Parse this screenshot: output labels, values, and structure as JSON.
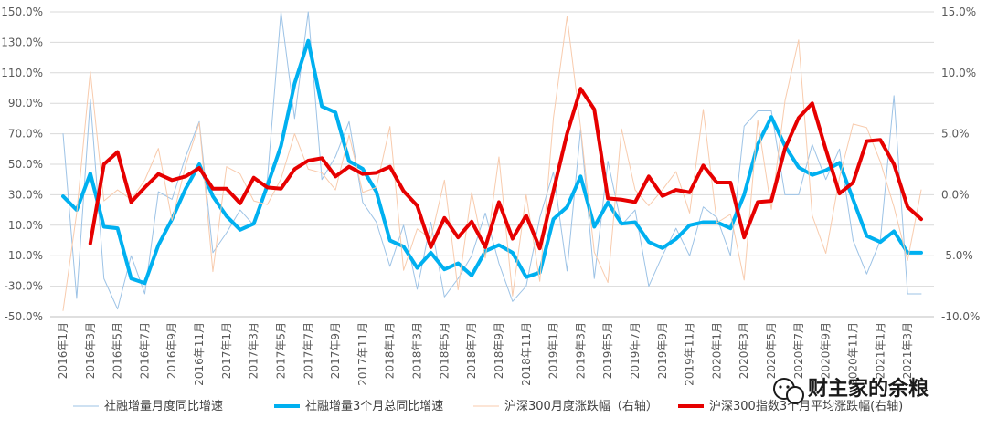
{
  "chart_data": {
    "type": "line",
    "months": [
      "2016年1月",
      "2016年2月",
      "2016年3月",
      "2016年4月",
      "2016年5月",
      "2016年6月",
      "2016年7月",
      "2016年8月",
      "2016年9月",
      "2016年10月",
      "2016年11月",
      "2016年12月",
      "2017年1月",
      "2017年2月",
      "2017年3月",
      "2017年4月",
      "2017年5月",
      "2017年6月",
      "2017年7月",
      "2017年8月",
      "2017年9月",
      "2017年10月",
      "2017年11月",
      "2017年12月",
      "2018年1月",
      "2018年2月",
      "2018年3月",
      "2018年4月",
      "2018年5月",
      "2018年6月",
      "2018年7月",
      "2018年8月",
      "2018年9月",
      "2018年10月",
      "2018年11月",
      "2018年12月",
      "2019年1月",
      "2019年2月",
      "2019年3月",
      "2019年4月",
      "2019年5月",
      "2019年6月",
      "2019年7月",
      "2019年8月",
      "2019年9月",
      "2019年10月",
      "2019年11月",
      "2019年12月",
      "2020年1月",
      "2020年2月",
      "2020年3月",
      "2020年4月",
      "2020年5月",
      "2020年6月",
      "2020年7月",
      "2020年8月",
      "2020年9月",
      "2020年10月",
      "2020年11月",
      "2020年12月",
      "2021年1月",
      "2021年2月",
      "2021年3月",
      "2021年4月"
    ],
    "x_tick_labels": [
      "2016年1月",
      "2016年3月",
      "2016年5月",
      "2016年7月",
      "2016年9月",
      "2016年11月",
      "2017年1月",
      "2017年3月",
      "2017年5月",
      "2017年7月",
      "2017年9月",
      "2017年11月",
      "2018年1月",
      "2018年3月",
      "2018年5月",
      "2018年7月",
      "2018年9月",
      "2018年11月",
      "2019年1月",
      "2019年3月",
      "2019年5月",
      "2019年7月",
      "2019年9月",
      "2019年11月",
      "2020年1月",
      "2020年3月",
      "2020年5月",
      "2020年7月",
      "2020年9月",
      "2020年11月",
      "2021年1月",
      "2021年3月"
    ],
    "y_left": {
      "min": -50,
      "max": 150,
      "step": 20,
      "unit": "%"
    },
    "y_right": {
      "min": -10,
      "max": 15,
      "step": 5,
      "unit": "%"
    },
    "series": [
      {
        "name": "社融增量月度同比增速",
        "axis": "left",
        "color": "#9dc3e6",
        "width": 1,
        "values": [
          70,
          -38,
          93,
          -25,
          -45,
          -10,
          -35,
          32,
          27,
          55,
          78,
          -8,
          5,
          20,
          10,
          40,
          150,
          80,
          150,
          40,
          55,
          78,
          25,
          12,
          -17,
          10,
          -32,
          12,
          -37,
          -25,
          -10,
          18,
          -15,
          -40,
          -30,
          15,
          45,
          -20,
          73,
          -25,
          52,
          10,
          20,
          -30,
          -10,
          8,
          -10,
          22,
          15,
          -10,
          75,
          85,
          85,
          30,
          30,
          63,
          40,
          60,
          0,
          -22,
          0,
          95,
          -35,
          -35
        ]
      },
      {
        "name": "社融增量3个月总同比增速",
        "axis": "left",
        "color": "#00b0f0",
        "width": 4,
        "values": [
          29,
          20,
          44,
          9,
          8,
          -25,
          -28,
          -3,
          14,
          34,
          50,
          29,
          16,
          7,
          11,
          36,
          62,
          103,
          131,
          88,
          84,
          52,
          47,
          32,
          0,
          -4,
          -18,
          -8,
          -19,
          -15,
          -23,
          -7,
          -3,
          -8,
          -24,
          -21,
          14,
          22,
          42,
          9,
          25,
          11,
          12,
          -1,
          -5,
          1,
          10,
          12,
          12,
          8,
          30,
          63,
          81,
          62,
          48,
          43,
          46,
          51,
          27,
          3,
          -1,
          6,
          -8,
          -8
        ]
      },
      {
        "name": "沪深300月度涨跌幅（右轴）",
        "axis": "right",
        "color": "#f8cbad",
        "width": 1,
        "values": [
          -9.5,
          -1.5,
          10.1,
          -0.5,
          0.4,
          -0.4,
          1.2,
          3.8,
          -2.1,
          2.4,
          5.9,
          -6.3,
          2.3,
          1.7,
          -0.5,
          -0.8,
          1.3,
          5.0,
          2.1,
          1.8,
          0.4,
          4.9,
          0.2,
          0.6,
          5.6,
          -6.2,
          -2.8,
          -3.6,
          1.2,
          -7.8,
          0.2,
          -5.2,
          3.1,
          -8.3,
          0.0,
          -7.1,
          6.3,
          14.6,
          5.5,
          -4.7,
          -7.2,
          5.4,
          0.4,
          -0.9,
          0.4,
          1.9,
          -1.5,
          7.0,
          -2.3,
          -1.6,
          -7.0,
          6.1,
          -1.2,
          7.7,
          12.7,
          -1.7,
          -4.8,
          1.4,
          5.8,
          5.5,
          2.7,
          -1.0,
          -5.4,
          0.4
        ]
      },
      {
        "name": "沪深300指数3个月平均涨跌幅(右轴)",
        "axis": "right",
        "color": "#e60000",
        "width": 4,
        "values": [
          null,
          null,
          -4.0,
          2.5,
          3.5,
          -0.6,
          0.6,
          1.7,
          1.2,
          1.5,
          2.2,
          0.5,
          0.5,
          -0.7,
          1.4,
          0.6,
          0.5,
          2.1,
          2.8,
          3.0,
          1.5,
          2.3,
          1.7,
          1.8,
          2.3,
          0.3,
          -0.9,
          -4.3,
          -1.9,
          -3.5,
          -2.2,
          -4.3,
          -0.6,
          -3.6,
          -1.7,
          -4.4,
          0.3,
          5.0,
          8.7,
          7.0,
          -0.3,
          -0.4,
          -0.6,
          1.5,
          -0.1,
          0.4,
          0.2,
          2.4,
          1.0,
          1.0,
          -3.5,
          -0.6,
          -0.5,
          3.8,
          6.3,
          7.5,
          3.7,
          0.1,
          1.0,
          4.4,
          4.5,
          2.5,
          -1.0,
          -2.0
        ]
      }
    ],
    "legend_position": "bottom",
    "grid": "horizontal",
    "title": ""
  },
  "watermark": {
    "text": "财主家的余粮",
    "icon": "wechat-icon"
  }
}
